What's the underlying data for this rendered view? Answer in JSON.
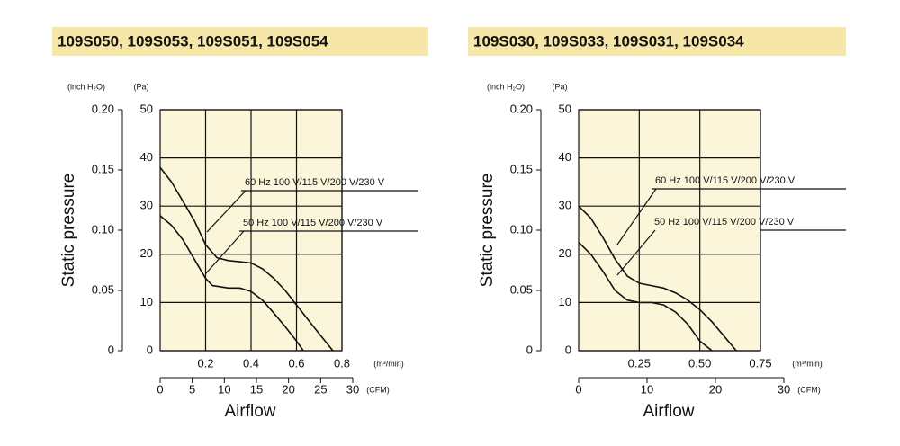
{
  "chart_data": [
    {
      "type": "line",
      "title": "109S050, 109S053, 109S051, 109S054",
      "y_label": "Static pressure",
      "x_label": "Airflow",
      "y_unit": "(Pa)",
      "y2_unit": "(inch H₂O)",
      "x_unit": "(m³/min)",
      "x2_unit": "(CFM)",
      "xlim": [
        0,
        0.8
      ],
      "xticks": [
        0.2,
        0.4,
        0.6,
        0.8
      ],
      "x2lim": [
        0,
        30
      ],
      "x2ticks": [
        0,
        5,
        10,
        15,
        20,
        25,
        30
      ],
      "ylim": [
        0,
        50
      ],
      "yticks": [
        0,
        10,
        20,
        30,
        40,
        50
      ],
      "y2lim": [
        0,
        0.2
      ],
      "y2ticks": [
        0,
        0.05,
        {
          "value": 0.1,
          "label": "0.10"
        },
        0.15,
        {
          "value": 0.2,
          "label": "0.20"
        }
      ],
      "grid": true,
      "background": "#fbf5da",
      "color": "#111111",
      "series": [
        {
          "name": "60 Hz 100 V/115 V/200 V/230 V",
          "color": "#111111",
          "x": [
            0,
            0.05,
            0.1,
            0.15,
            0.2,
            0.25,
            0.3,
            0.4,
            0.45,
            0.5,
            0.55,
            0.6,
            0.65,
            0.7,
            0.76
          ],
          "values": [
            38,
            35,
            31,
            27,
            22,
            19.3,
            18.7,
            18.2,
            17,
            15,
            12.5,
            9.5,
            6.5,
            3.5,
            0
          ]
        },
        {
          "name": "50 Hz 100 V/115 V/200 V/230 V",
          "color": "#111111",
          "x": [
            0,
            0.05,
            0.1,
            0.15,
            0.2,
            0.23,
            0.3,
            0.35,
            0.4,
            0.45,
            0.5,
            0.55,
            0.6,
            0.63
          ],
          "values": [
            28,
            26,
            23,
            19,
            15,
            13.5,
            13,
            13,
            12.3,
            10.5,
            7.8,
            5,
            2,
            0
          ]
        }
      ]
    },
    {
      "type": "line",
      "title": "109S030, 109S033, 109S031, 109S034",
      "y_label": "Static pressure",
      "x_label": "Airflow",
      "y_unit": "(Pa)",
      "y2_unit": "(inch H₂O)",
      "x_unit": "(m³/min)",
      "x2_unit": "(CFM)",
      "xlim": [
        0,
        0.75
      ],
      "xticks": [
        0.25,
        {
          "value": 0.5,
          "label": "0.50"
        },
        0.75
      ],
      "x2lim": [
        0,
        30
      ],
      "x2ticks": [
        0,
        10,
        20,
        30
      ],
      "ylim": [
        0,
        50
      ],
      "yticks": [
        0,
        10,
        20,
        30,
        40,
        50
      ],
      "y2lim": [
        0,
        0.2
      ],
      "y2ticks": [
        0,
        0.05,
        {
          "value": 0.1,
          "label": "0.10"
        },
        0.15,
        {
          "value": 0.2,
          "label": "0.20"
        }
      ],
      "grid": true,
      "background": "#fbf5da",
      "color": "#111111",
      "series": [
        {
          "name": "60 Hz 100 V/115 V/200 V/230 V",
          "color": "#111111",
          "x": [
            0,
            0.05,
            0.1,
            0.15,
            0.2,
            0.25,
            0.3,
            0.35,
            0.4,
            0.45,
            0.5,
            0.55,
            0.6,
            0.65
          ],
          "values": [
            30,
            27.5,
            23.5,
            19,
            15.5,
            14,
            13.5,
            13,
            12,
            10.5,
            8.5,
            6,
            3,
            0
          ]
        },
        {
          "name": "50 Hz 100 V/115 V/200 V/230 V",
          "color": "#111111",
          "x": [
            0,
            0.05,
            0.1,
            0.15,
            0.2,
            0.25,
            0.3,
            0.35,
            0.4,
            0.45,
            0.5,
            0.55
          ],
          "values": [
            22.5,
            20,
            16.5,
            12.5,
            10.5,
            10,
            10,
            9.5,
            8,
            5.5,
            2,
            0
          ]
        }
      ]
    }
  ]
}
